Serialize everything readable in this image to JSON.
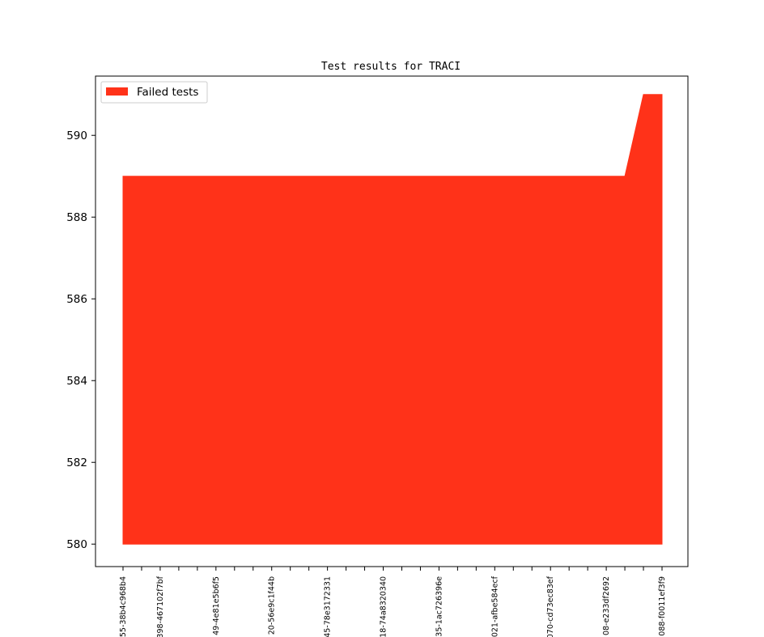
{
  "chart_data": {
    "type": "area",
    "title": "Test results for TRACI",
    "xlabel": "",
    "ylabel": "",
    "ylim": [
      579.45,
      591.45
    ],
    "yticks": [
      580,
      582,
      584,
      586,
      588,
      590
    ],
    "ytick_labels": [
      "580",
      "582",
      "584",
      "586",
      "588",
      "590"
    ],
    "baseline": 580,
    "x": [
      "55-38b4c968b4",
      "",
      "398-467102f7bf",
      "",
      "",
      "49-4e81e5b6f5",
      "",
      "",
      "20-56e9c1f44b",
      "",
      "",
      "45-78e3172331",
      "",
      "",
      "18-74a8320340",
      "",
      "",
      "35-1ac726396e",
      "",
      "",
      "021-afbe584ecf",
      "",
      "",
      "070-cd73ec83ef",
      "",
      "",
      "08-e233df2692",
      "",
      "",
      "088-f0011ef3f9"
    ],
    "xtick_visible": [
      true,
      false,
      true,
      false,
      false,
      true,
      false,
      false,
      true,
      false,
      false,
      true,
      false,
      false,
      true,
      false,
      false,
      true,
      false,
      false,
      true,
      false,
      false,
      true,
      false,
      false,
      true,
      false,
      false,
      true
    ],
    "series": [
      {
        "name": "Failed tests",
        "color": "#ff3219",
        "values": [
          589,
          589,
          589,
          589,
          589,
          589,
          589,
          589,
          589,
          589,
          589,
          589,
          589,
          589,
          589,
          589,
          589,
          589,
          589,
          589,
          589,
          589,
          589,
          589,
          589,
          589,
          589,
          589,
          591,
          591
        ]
      }
    ],
    "legend": {
      "position": "top-left",
      "entries": [
        "Failed tests"
      ]
    },
    "grid": false
  }
}
